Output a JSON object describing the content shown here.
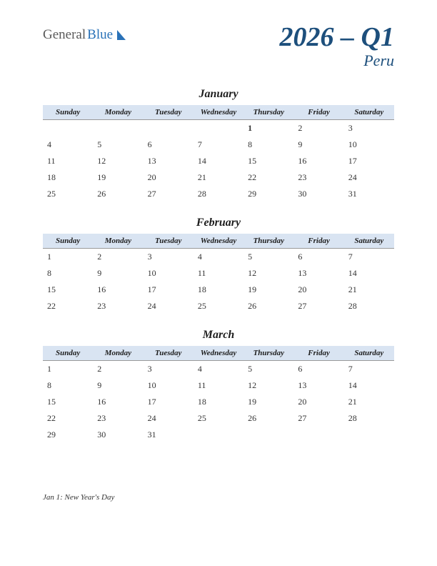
{
  "logo": {
    "part1": "General",
    "part2": "Blue"
  },
  "title": "2026 – Q1",
  "subtitle": "Peru",
  "colors": {
    "header_bg": "#d9e4f2",
    "title_color": "#1d4f7c",
    "holiday_color": "#cc0000",
    "logo_blue": "#2a72b8",
    "logo_gray": "#5a5a5a"
  },
  "weekdays": [
    "Sunday",
    "Monday",
    "Tuesday",
    "Wednesday",
    "Thursday",
    "Friday",
    "Saturday"
  ],
  "months": [
    {
      "name": "January",
      "weeks": [
        [
          "",
          "",
          "",
          "",
          "1",
          "2",
          "3"
        ],
        [
          "4",
          "5",
          "6",
          "7",
          "8",
          "9",
          "10"
        ],
        [
          "11",
          "12",
          "13",
          "14",
          "15",
          "16",
          "17"
        ],
        [
          "18",
          "19",
          "20",
          "21",
          "22",
          "23",
          "24"
        ],
        [
          "25",
          "26",
          "27",
          "28",
          "29",
          "30",
          "31"
        ]
      ],
      "holidays": [
        "1"
      ]
    },
    {
      "name": "February",
      "weeks": [
        [
          "1",
          "2",
          "3",
          "4",
          "5",
          "6",
          "7"
        ],
        [
          "8",
          "9",
          "10",
          "11",
          "12",
          "13",
          "14"
        ],
        [
          "15",
          "16",
          "17",
          "18",
          "19",
          "20",
          "21"
        ],
        [
          "22",
          "23",
          "24",
          "25",
          "26",
          "27",
          "28"
        ]
      ],
      "holidays": []
    },
    {
      "name": "March",
      "weeks": [
        [
          "1",
          "2",
          "3",
          "4",
          "5",
          "6",
          "7"
        ],
        [
          "8",
          "9",
          "10",
          "11",
          "12",
          "13",
          "14"
        ],
        [
          "15",
          "16",
          "17",
          "18",
          "19",
          "20",
          "21"
        ],
        [
          "22",
          "23",
          "24",
          "25",
          "26",
          "27",
          "28"
        ],
        [
          "29",
          "30",
          "31",
          "",
          "",
          "",
          ""
        ]
      ],
      "holidays": []
    }
  ],
  "notes": "Jan 1: New Year's Day"
}
